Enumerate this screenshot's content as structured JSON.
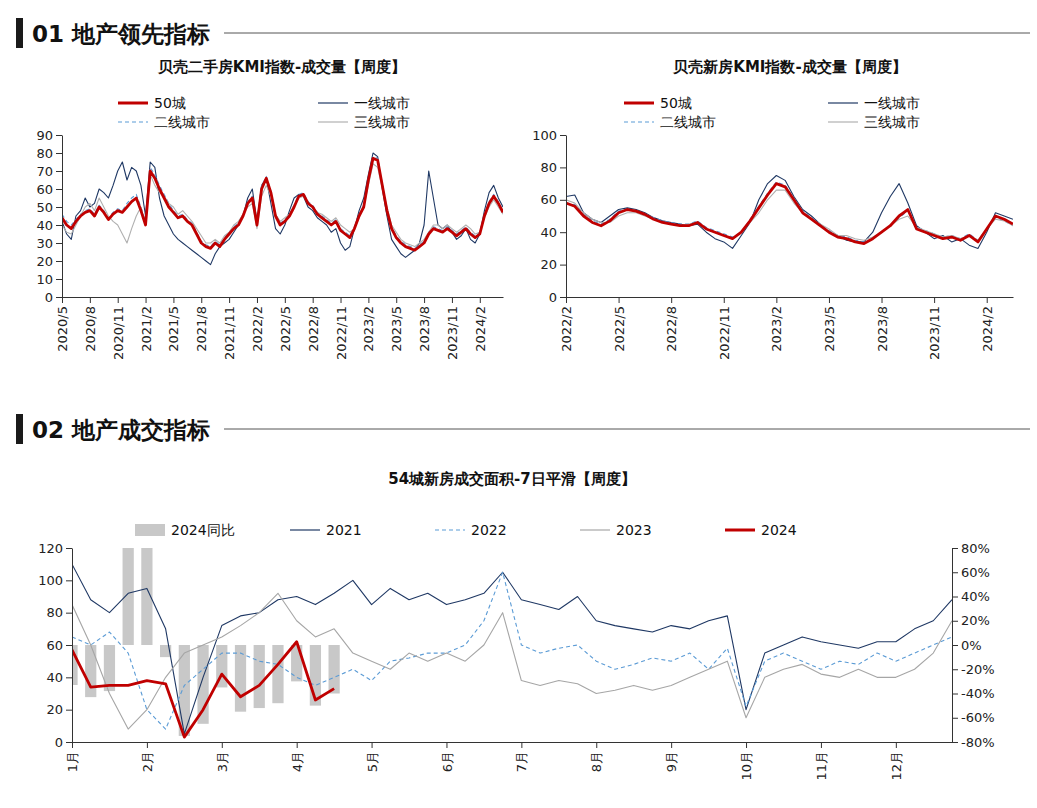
{
  "sections": [
    "01 地产领先指标",
    "02 地产成交指标"
  ],
  "chart_data": [
    {
      "type": "line",
      "title": "贝壳二手房KMI指数-成交量【周度】",
      "categories": [
        "2020/5",
        null,
        null,
        null,
        null,
        null,
        "2020/8",
        null,
        null,
        null,
        null,
        null,
        "2020/11",
        null,
        null,
        null,
        null,
        null,
        "2021/2",
        null,
        null,
        null,
        null,
        null,
        "2021/5",
        null,
        null,
        null,
        null,
        null,
        "2021/8",
        null,
        null,
        null,
        null,
        null,
        "2021/11",
        null,
        null,
        null,
        null,
        null,
        "2022/2",
        null,
        null,
        null,
        null,
        null,
        "2022/5",
        null,
        null,
        null,
        null,
        null,
        "2022/8",
        null,
        null,
        null,
        null,
        null,
        "2022/11",
        null,
        null,
        null,
        null,
        null,
        "2023/2",
        null,
        null,
        null,
        null,
        null,
        "2023/5",
        null,
        null,
        null,
        null,
        null,
        "2023/8",
        null,
        null,
        null,
        null,
        null,
        "2023/11",
        null,
        null,
        null,
        null,
        null,
        "2024/2",
        null,
        null,
        null,
        null,
        null
      ],
      "series": [
        {
          "name": "50城",
          "color": "#c00000",
          "line_style": "solid",
          "values": [
            44,
            40,
            38,
            42,
            45,
            47,
            48,
            45,
            50,
            47,
            43,
            46,
            48,
            47,
            50,
            53,
            55,
            48,
            40,
            70,
            66,
            60,
            55,
            50,
            47,
            44,
            45,
            42,
            40,
            35,
            30,
            28,
            27,
            30,
            28,
            32,
            35,
            38,
            40,
            45,
            52,
            55,
            40,
            60,
            66,
            58,
            45,
            40,
            42,
            45,
            50,
            56,
            57,
            52,
            50,
            46,
            44,
            42,
            40,
            42,
            37,
            35,
            33,
            38,
            45,
            50,
            65,
            77,
            76,
            62,
            48,
            38,
            33,
            30,
            28,
            27,
            26,
            28,
            30,
            35,
            38,
            37,
            36,
            38,
            36,
            34,
            36,
            38,
            35,
            33,
            35,
            45,
            52,
            56,
            52,
            47
          ]
        },
        {
          "name": "一线城市",
          "color": "#1f3864",
          "line_style": "solid",
          "values": [
            42,
            35,
            32,
            45,
            48,
            55,
            50,
            52,
            60,
            58,
            55,
            62,
            70,
            75,
            65,
            72,
            70,
            62,
            45,
            75,
            72,
            55,
            45,
            40,
            35,
            32,
            30,
            28,
            26,
            24,
            22,
            20,
            18,
            24,
            28,
            30,
            32,
            36,
            40,
            45,
            55,
            60,
            42,
            62,
            66,
            52,
            38,
            35,
            40,
            48,
            55,
            57,
            56,
            50,
            48,
            44,
            42,
            40,
            36,
            38,
            30,
            26,
            28,
            38,
            48,
            55,
            68,
            80,
            78,
            60,
            45,
            32,
            28,
            24,
            22,
            24,
            26,
            30,
            40,
            70,
            55,
            40,
            38,
            40,
            36,
            32,
            34,
            38,
            32,
            30,
            35,
            48,
            58,
            62,
            55,
            50
          ]
        },
        {
          "name": "二线城市",
          "color": "#5b9bd5",
          "line_style": "dashed",
          "values": [
            46,
            42,
            40,
            43,
            46,
            48,
            49,
            46,
            51,
            48,
            44,
            47,
            49,
            48,
            52,
            55,
            57,
            50,
            42,
            72,
            68,
            62,
            57,
            52,
            48,
            45,
            46,
            43,
            41,
            36,
            31,
            29,
            28,
            31,
            29,
            33,
            36,
            39,
            41,
            46,
            53,
            56,
            41,
            62,
            67,
            59,
            46,
            41,
            43,
            46,
            51,
            57,
            58,
            53,
            51,
            47,
            45,
            43,
            41,
            43,
            38,
            36,
            34,
            39,
            46,
            51,
            66,
            78,
            77,
            63,
            49,
            39,
            34,
            31,
            29,
            28,
            27,
            29,
            31,
            36,
            39,
            38,
            37,
            39,
            37,
            35,
            37,
            39,
            36,
            34,
            36,
            46,
            53,
            57,
            53,
            48
          ]
        },
        {
          "name": "三线城市",
          "color": "#b0b0b0",
          "line_style": "solid",
          "values": [
            40,
            36,
            35,
            40,
            45,
            50,
            52,
            48,
            55,
            50,
            45,
            42,
            40,
            35,
            30,
            38,
            45,
            50,
            40,
            68,
            62,
            58,
            56,
            52,
            50,
            46,
            48,
            45,
            42,
            38,
            34,
            30,
            30,
            32,
            30,
            34,
            36,
            40,
            42,
            46,
            50,
            52,
            38,
            56,
            62,
            56,
            46,
            42,
            44,
            46,
            50,
            55,
            56,
            52,
            50,
            47,
            46,
            44,
            42,
            44,
            40,
            38,
            36,
            38,
            44,
            50,
            62,
            74,
            72,
            60,
            50,
            40,
            36,
            32,
            30,
            29,
            28,
            30,
            32,
            36,
            40,
            40,
            38,
            40,
            38,
            36,
            38,
            40,
            38,
            35,
            36,
            44,
            50,
            54,
            50,
            46
          ]
        }
      ],
      "ylim": [
        0,
        90
      ],
      "yticks": [
        0,
        10,
        20,
        30,
        40,
        50,
        60,
        70,
        80,
        90
      ],
      "grid": false,
      "legend": "top"
    },
    {
      "type": "line",
      "title": "贝壳新房KMI指数-成交量【周度】",
      "categories": [
        "2022/2",
        null,
        null,
        null,
        null,
        null,
        "2022/5",
        null,
        null,
        null,
        null,
        null,
        "2022/8",
        null,
        null,
        null,
        null,
        null,
        "2022/11",
        null,
        null,
        null,
        null,
        null,
        "2023/2",
        null,
        null,
        null,
        null,
        null,
        "2023/5",
        null,
        null,
        null,
        null,
        null,
        "2023/8",
        null,
        null,
        null,
        null,
        null,
        "2023/11",
        null,
        null,
        null,
        null,
        null,
        "2024/2",
        null,
        null,
        null
      ],
      "series": [
        {
          "name": "50城",
          "color": "#c00000",
          "line_style": "solid",
          "values": [
            58,
            56,
            50,
            46,
            44,
            47,
            52,
            54,
            53,
            51,
            48,
            46,
            45,
            44,
            44,
            46,
            42,
            40,
            38,
            36,
            40,
            47,
            55,
            63,
            70,
            68,
            60,
            52,
            48,
            44,
            40,
            37,
            36,
            34,
            33,
            36,
            40,
            44,
            50,
            54,
            42,
            40,
            38,
            36,
            37,
            35,
            38,
            34,
            42,
            50,
            48,
            45
          ]
        },
        {
          "name": "一线城市",
          "color": "#1f3864",
          "line_style": "solid",
          "values": [
            62,
            63,
            52,
            48,
            46,
            50,
            54,
            55,
            54,
            52,
            49,
            47,
            46,
            45,
            44,
            45,
            40,
            36,
            34,
            30,
            38,
            46,
            60,
            70,
            75,
            72,
            62,
            54,
            50,
            45,
            40,
            38,
            35,
            34,
            34,
            40,
            52,
            62,
            70,
            58,
            44,
            40,
            36,
            38,
            34,
            36,
            32,
            30,
            40,
            52,
            50,
            48
          ]
        },
        {
          "name": "二线城市",
          "color": "#5b9bd5",
          "line_style": "dashed",
          "values": [
            58,
            57,
            51,
            47,
            45,
            48,
            53,
            54,
            53,
            51,
            49,
            47,
            46,
            45,
            45,
            47,
            43,
            41,
            39,
            37,
            40,
            48,
            56,
            64,
            71,
            69,
            61,
            53,
            49,
            45,
            41,
            38,
            37,
            35,
            34,
            36,
            40,
            44,
            49,
            53,
            43,
            41,
            39,
            37,
            38,
            36,
            39,
            35,
            42,
            49,
            47,
            44
          ]
        },
        {
          "name": "三线城市",
          "color": "#b0b0b0",
          "line_style": "solid",
          "values": [
            60,
            58,
            52,
            48,
            46,
            46,
            50,
            52,
            52,
            50,
            48,
            46,
            45,
            44,
            45,
            46,
            42,
            40,
            38,
            36,
            40,
            46,
            52,
            60,
            66,
            66,
            58,
            52,
            48,
            45,
            42,
            38,
            38,
            36,
            35,
            37,
            40,
            44,
            48,
            50,
            43,
            41,
            39,
            37,
            38,
            36,
            38,
            35,
            42,
            48,
            47,
            44
          ]
        }
      ],
      "ylim": [
        0,
        100
      ],
      "yticks": [
        0,
        20,
        40,
        60,
        80,
        100
      ],
      "grid": false,
      "legend": "top"
    },
    {
      "type": "line",
      "title": "54城新房成交面积-7日平滑【周度】",
      "categories": [
        "1月",
        null,
        null,
        null,
        "2月",
        null,
        null,
        null,
        "3月",
        null,
        null,
        null,
        "4月",
        null,
        null,
        null,
        "5月",
        null,
        null,
        null,
        "6月",
        null,
        null,
        null,
        "7月",
        null,
        null,
        null,
        "8月",
        null,
        null,
        null,
        "9月",
        null,
        null,
        null,
        "10月",
        null,
        null,
        null,
        "11月",
        null,
        null,
        null,
        "12月",
        null,
        null,
        null
      ],
      "series": [
        {
          "name": "2024同比",
          "type": "bar",
          "axis": "y2",
          "color": "#c8c8c8",
          "values": [
            -33,
            -43,
            -38,
            80,
            80,
            -10,
            -75,
            -65,
            -35,
            -55,
            -52,
            -48,
            -30,
            -50,
            -40,
            null,
            null,
            null,
            null,
            null,
            null,
            null,
            null,
            null,
            null,
            null,
            null,
            null,
            null,
            null,
            null,
            null,
            null,
            null,
            null,
            null,
            null,
            null,
            null,
            null,
            null,
            null,
            null,
            null,
            null,
            null,
            null,
            null
          ]
        },
        {
          "name": "2021",
          "color": "#1f3864",
          "line_style": "solid",
          "values": [
            110,
            88,
            80,
            92,
            95,
            70,
            5,
            40,
            72,
            78,
            80,
            88,
            90,
            85,
            92,
            100,
            85,
            95,
            88,
            92,
            85,
            88,
            92,
            105,
            88,
            85,
            82,
            90,
            75,
            72,
            70,
            68,
            72,
            70,
            75,
            78,
            20,
            55,
            60,
            65,
            62,
            60,
            58,
            62,
            62,
            70,
            75,
            88
          ]
        },
        {
          "name": "2022",
          "color": "#5b9bd5",
          "line_style": "dashed",
          "values": [
            65,
            60,
            68,
            55,
            20,
            8,
            35,
            45,
            55,
            55,
            50,
            48,
            40,
            35,
            40,
            45,
            38,
            50,
            52,
            55,
            55,
            60,
            75,
            105,
            60,
            55,
            58,
            60,
            50,
            45,
            48,
            52,
            50,
            55,
            45,
            58,
            22,
            50,
            55,
            50,
            45,
            50,
            48,
            55,
            50,
            55,
            60,
            65
          ]
        },
        {
          "name": "2023",
          "color": "#a6a6a6",
          "line_style": "solid",
          "values": [
            85,
            60,
            30,
            8,
            20,
            40,
            55,
            60,
            65,
            72,
            80,
            92,
            75,
            65,
            70,
            55,
            50,
            45,
            55,
            50,
            55,
            50,
            60,
            80,
            38,
            35,
            38,
            36,
            30,
            32,
            35,
            32,
            35,
            40,
            45,
            50,
            15,
            40,
            45,
            48,
            42,
            40,
            45,
            40,
            40,
            45,
            55,
            75
          ]
        },
        {
          "name": "2024",
          "color": "#c00000",
          "line_style": "solid",
          "values": [
            57,
            34,
            35,
            35,
            38,
            36,
            3,
            20,
            42,
            28,
            35,
            48,
            62,
            26,
            33,
            null,
            null,
            null,
            null,
            null,
            null,
            null,
            null,
            null,
            null,
            null,
            null,
            null,
            null,
            null,
            null,
            null,
            null,
            null,
            null,
            null,
            null,
            null,
            null,
            null,
            null,
            null,
            null,
            null,
            null,
            null,
            null,
            null
          ]
        }
      ],
      "ylim": [
        0,
        120
      ],
      "yticks": [
        0,
        20,
        40,
        60,
        80,
        100,
        120
      ],
      "y2lim": [
        -80,
        80
      ],
      "y2ticks": [
        {
          "value": -80,
          "label": "-80%"
        },
        {
          "value": -60,
          "label": "-60%"
        },
        {
          "value": -40,
          "label": "-40%"
        },
        {
          "value": -20,
          "label": "-20%"
        },
        {
          "value": 0,
          "label": "0%"
        },
        {
          "value": 20,
          "label": "20%"
        },
        {
          "value": 40,
          "label": "40%"
        },
        {
          "value": 60,
          "label": "60%"
        },
        {
          "value": 80,
          "label": "80%"
        }
      ],
      "grid": false,
      "legend": "top"
    }
  ]
}
